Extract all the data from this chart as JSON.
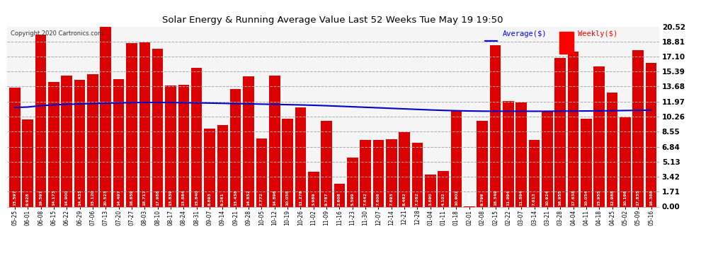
{
  "title": "Solar Energy & Running Average Value Last 52 Weeks Tue May 19 19:50",
  "copyright": "Copyright 2020 Cartronics.com",
  "legend_avg": "Average($)",
  "legend_weekly": "Weekly($)",
  "bar_color": "#dd0000",
  "avg_line_color": "#0000cc",
  "avg_line_color_legend": "#0000ff",
  "weekly_legend_color": "#ff0000",
  "background_color": "#ffffff",
  "plot_bg_color": "#f5f5f5",
  "ylim": [
    0,
    20.52
  ],
  "yticks": [
    0.0,
    1.71,
    3.42,
    5.13,
    6.84,
    8.55,
    10.26,
    11.97,
    13.68,
    15.39,
    17.1,
    18.81,
    20.52
  ],
  "categories": [
    "05-25",
    "06-01",
    "06-08",
    "06-15",
    "06-22",
    "06-29",
    "07-06",
    "07-13",
    "07-20",
    "07-27",
    "08-03",
    "08-10",
    "08-17",
    "08-24",
    "08-31",
    "09-07",
    "09-14",
    "09-21",
    "09-28",
    "10-05",
    "10-12",
    "10-19",
    "10-26",
    "11-02",
    "11-09",
    "11-16",
    "11-23",
    "11-30",
    "12-07",
    "12-14",
    "12-21",
    "12-28",
    "01-04",
    "01-11",
    "01-18",
    "02-01",
    "02-08",
    "02-15",
    "02-22",
    "03-07",
    "03-14",
    "03-21",
    "03-28",
    "04-04",
    "04-11",
    "04-18",
    "04-25",
    "05-02",
    "05-09",
    "05-16"
  ],
  "weekly_values": [
    13.597,
    9.928,
    19.597,
    14.173,
    14.9,
    14.433,
    15.12,
    20.523,
    14.497,
    18.659,
    18.717,
    17.988,
    13.839,
    13.884,
    15.84,
    8.893,
    9.261,
    13.438,
    14.852,
    7.772,
    14.896,
    10.058,
    11.276,
    3.989,
    9.787,
    2.608,
    5.599,
    7.642,
    7.606,
    7.693,
    8.462,
    7.262,
    3.69,
    4.102,
    10.902,
    0.008,
    9.799,
    18.349,
    11.994,
    11.894,
    7.613,
    10.924,
    16.955,
    17.638,
    10.054,
    15.955,
    12.988,
    10.196,
    17.835,
    16.388
  ],
  "avg_values": [
    11.3,
    11.35,
    11.5,
    11.6,
    11.65,
    11.7,
    11.75,
    11.8,
    11.82,
    11.85,
    11.87,
    11.87,
    11.86,
    11.84,
    11.83,
    11.8,
    11.77,
    11.74,
    11.71,
    11.68,
    11.65,
    11.62,
    11.59,
    11.55,
    11.5,
    11.44,
    11.38,
    11.32,
    11.26,
    11.2,
    11.14,
    11.08,
    11.02,
    10.97,
    10.93,
    10.9,
    10.88,
    10.87,
    10.87,
    10.87,
    10.87,
    10.87,
    10.88,
    10.89,
    10.9,
    10.91,
    10.93,
    10.95,
    10.97,
    11.0
  ]
}
